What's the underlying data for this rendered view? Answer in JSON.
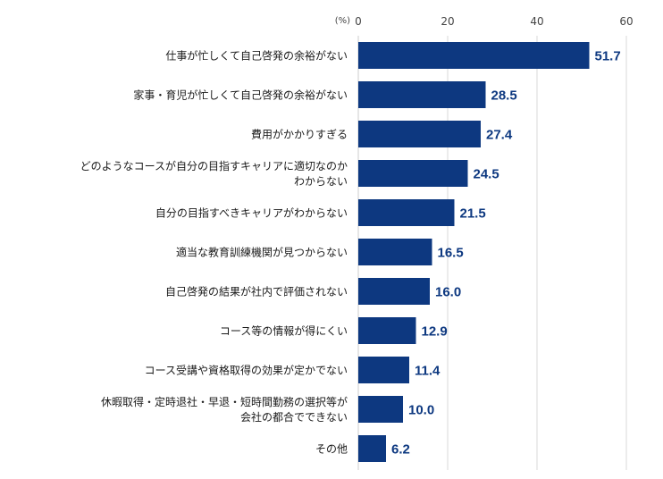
{
  "chart_data": {
    "type": "bar",
    "orientation": "horizontal",
    "unit_label": "(%)",
    "categories": [
      [
        "仕事が忙しくて自己啓発の余裕がない"
      ],
      [
        "家事・育児が忙しくて自己啓発の余裕がない"
      ],
      [
        "費用がかかりすぎる"
      ],
      [
        "どのようなコースが自分の目指すキャリアに適切なのか",
        "わからない"
      ],
      [
        "自分の目指すべきキャリアがわからない"
      ],
      [
        "適当な教育訓練機関が見つからない"
      ],
      [
        "自己啓発の結果が社内で評価されない"
      ],
      [
        "コース等の情報が得にくい"
      ],
      [
        "コース受講や資格取得の効果が定かでない"
      ],
      [
        "休暇取得・定時退社・早退・短時間勤務の選択等が",
        "会社の都合でできない"
      ],
      [
        "その他"
      ]
    ],
    "values": [
      51.7,
      28.5,
      27.4,
      24.5,
      21.5,
      16.5,
      16.0,
      12.9,
      11.4,
      10.0,
      6.2
    ],
    "value_labels": [
      "51.7",
      "28.5",
      "27.4",
      "24.5",
      "21.5",
      "16.5",
      "16.0",
      "12.9",
      "11.4",
      "10.0",
      "6.2"
    ],
    "xlim": [
      0,
      60
    ],
    "xticks": [
      0,
      20,
      40,
      60
    ],
    "grid": true,
    "bar_color": "#0d3880",
    "value_label_color": "#0d3880"
  }
}
